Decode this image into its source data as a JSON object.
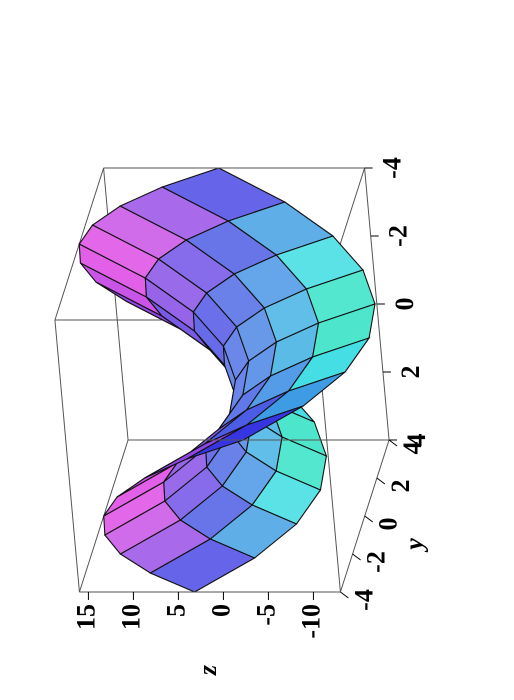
{
  "chart_data": {
    "type": "surface",
    "x": [
      -4,
      -3,
      -2,
      -1,
      0,
      1,
      2,
      3,
      4
    ],
    "y": [
      -4,
      -3,
      -2,
      -1,
      0,
      1,
      2,
      3,
      4
    ],
    "z": [
      [
        3.2,
        -3.8,
        -8.8,
        -11.8,
        -12.8,
        -11.8,
        -8.8,
        -3.8,
        3.2
      ],
      [
        8.8,
        1.8,
        -3.2,
        -6.2,
        -7.2,
        -6.2,
        -3.2,
        1.8,
        8.8
      ],
      [
        12.8,
        5.8,
        0.8,
        -2.2,
        -3.2,
        -2.2,
        0.8,
        5.8,
        12.8
      ],
      [
        15.2,
        8.2,
        3.2,
        0.2,
        -0.8,
        0.2,
        3.2,
        8.2,
        15.2
      ],
      [
        16,
        9,
        4,
        1,
        0,
        1,
        4,
        9,
        16
      ],
      [
        15.2,
        8.2,
        3.2,
        0.2,
        -0.8,
        0.2,
        3.2,
        8.2,
        15.2
      ],
      [
        12.8,
        5.8,
        0.8,
        -2.2,
        -3.2,
        -2.2,
        0.8,
        5.8,
        12.8
      ],
      [
        8.8,
        1.8,
        -3.2,
        -6.2,
        -7.2,
        -6.2,
        -3.2,
        1.8,
        8.8
      ],
      [
        3.2,
        -3.8,
        -8.8,
        -11.8,
        -12.8,
        -11.8,
        -8.8,
        -3.8,
        3.2
      ]
    ],
    "xlim": [
      -4,
      4
    ],
    "ylim": [
      -4,
      4
    ],
    "zlim": [
      -13,
      16
    ],
    "xticks": [
      -4,
      -2,
      0,
      2,
      4
    ],
    "yticks": [
      -4,
      -2,
      0,
      2,
      4
    ],
    "zticks": [
      -10,
      -5,
      0,
      5,
      10,
      15
    ],
    "ylabel": "y",
    "zlabel": "z"
  }
}
